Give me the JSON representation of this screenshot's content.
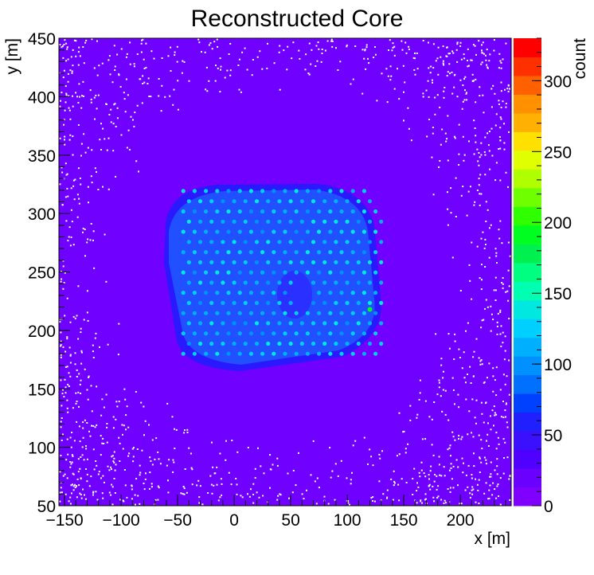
{
  "chart_data": {
    "type": "heatmap",
    "title": "Reconstructed Core",
    "xlabel": "x [m]",
    "ylabel": "y [m]",
    "zlabel": "count",
    "xlim": [
      -155,
      245
    ],
    "ylim": [
      50,
      450
    ],
    "zlim": [
      0,
      330
    ],
    "x_ticks": [
      {
        "value": -150,
        "label": "−150"
      },
      {
        "value": -100,
        "label": "−100"
      },
      {
        "value": -50,
        "label": "−50"
      },
      {
        "value": 0,
        "label": "0"
      },
      {
        "value": 50,
        "label": "50"
      },
      {
        "value": 100,
        "label": "100"
      },
      {
        "value": 150,
        "label": "150"
      },
      {
        "value": 200,
        "label": "200"
      }
    ],
    "y_ticks": [
      {
        "value": 50,
        "label": "50"
      },
      {
        "value": 100,
        "label": "100"
      },
      {
        "value": 150,
        "label": "150"
      },
      {
        "value": 200,
        "label": "200"
      },
      {
        "value": 250,
        "label": "250"
      },
      {
        "value": 300,
        "label": "300"
      },
      {
        "value": 350,
        "label": "350"
      },
      {
        "value": 400,
        "label": "400"
      },
      {
        "value": 450,
        "label": "450"
      }
    ],
    "z_ticks": [
      {
        "value": 0,
        "label": "0"
      },
      {
        "value": 50,
        "label": "50"
      },
      {
        "value": 100,
        "label": "100"
      },
      {
        "value": 150,
        "label": "150"
      },
      {
        "value": 200,
        "label": "200"
      },
      {
        "value": 250,
        "label": "250"
      },
      {
        "value": 300,
        "label": "300"
      }
    ],
    "palette": [
      "#7f00ff",
      "#6a00ff",
      "#5000ff",
      "#3a10ff",
      "#2020ff",
      "#0040ff",
      "#0070ff",
      "#0090ff",
      "#00b0ff",
      "#00d0ff",
      "#00e8e0",
      "#00ffb0",
      "#00ff80",
      "#00f050",
      "#00ff20",
      "#30ff00",
      "#70ff00",
      "#b0ff00",
      "#e0ff00",
      "#ffe000",
      "#ffb000",
      "#ff9000",
      "#ff6000",
      "#ff3000",
      "#ff0000"
    ],
    "background_level_color": "#7000ff",
    "grid": false,
    "reconstructed_region": {
      "x_range": [
        -60,
        140
      ],
      "y_range": [
        175,
        320
      ],
      "typical_count": [
        60,
        110
      ],
      "peak_count": 190,
      "peak_location": [
        120,
        218
      ]
    },
    "detector_grid_spots": {
      "x_range": [
        -45,
        130
      ],
      "y_range": [
        180,
        320
      ],
      "spacing": 10,
      "count": [
        100,
        140
      ]
    }
  }
}
